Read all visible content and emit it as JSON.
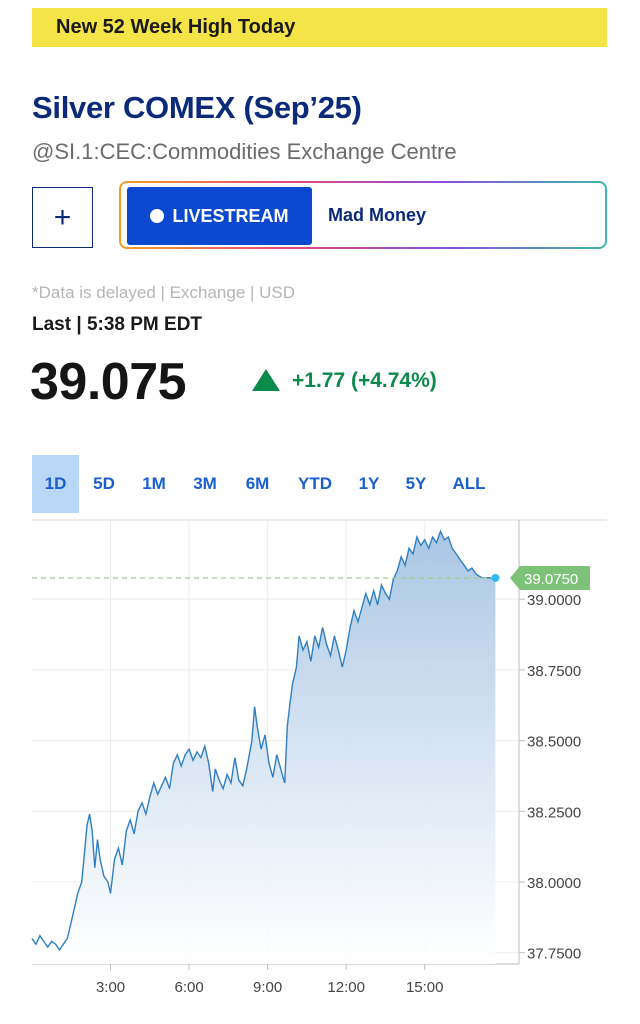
{
  "banner": "New 52 Week High Today",
  "quote": {
    "name": "Silver COMEX (Sep’25)",
    "symbol_line": "@SI.1:CEC:Commodities Exchange Centre",
    "add_button": "+",
    "livestream_label": "LIVESTREAM",
    "show_label": "Mad Money",
    "disclaimer": "*Data is delayed | Exchange | USD",
    "last_label": "Last | 5:38 PM EDT",
    "price": "39.075",
    "change": "+1.77 (+4.74%)",
    "change_color": "#0a8a4b"
  },
  "tabs": [
    {
      "label": "1D",
      "active": true
    },
    {
      "label": "5D"
    },
    {
      "label": "1M"
    },
    {
      "label": "3M"
    },
    {
      "label": "6M"
    },
    {
      "label": "YTD"
    },
    {
      "label": "1Y"
    },
    {
      "label": "5Y"
    },
    {
      "label": "ALL"
    }
  ],
  "chart_data": {
    "type": "area",
    "x_unit": "hours",
    "x_ticks": [
      3,
      6,
      9,
      12,
      15
    ],
    "x_tick_labels": [
      "3:00",
      "6:00",
      "9:00",
      "12:00",
      "15:00"
    ],
    "y_ticks": [
      37.75,
      38.0,
      38.25,
      38.5,
      38.75,
      39.0
    ],
    "y_tick_labels": [
      "37.7500",
      "38.0000",
      "38.2500",
      "38.5000",
      "38.7500",
      "39.0000"
    ],
    "xlim": [
      0,
      18.6
    ],
    "ylim": [
      37.71,
      39.28
    ],
    "last_value_label": "39.0750",
    "last_value": 39.075,
    "colors": {
      "line": "#2f7fc4",
      "fill_top": "#a9c6e4",
      "accent": "#7ec27a",
      "dot": "#2fb8ef"
    },
    "points": [
      [
        0.0,
        37.8
      ],
      [
        0.15,
        37.78
      ],
      [
        0.3,
        37.81
      ],
      [
        0.45,
        37.79
      ],
      [
        0.6,
        37.77
      ],
      [
        0.75,
        37.79
      ],
      [
        0.9,
        37.78
      ],
      [
        1.05,
        37.76
      ],
      [
        1.2,
        37.78
      ],
      [
        1.35,
        37.8
      ],
      [
        1.5,
        37.86
      ],
      [
        1.6,
        37.9
      ],
      [
        1.75,
        37.96
      ],
      [
        1.9,
        38.0
      ],
      [
        2.0,
        38.1
      ],
      [
        2.1,
        38.2
      ],
      [
        2.2,
        38.24
      ],
      [
        2.3,
        38.18
      ],
      [
        2.4,
        38.05
      ],
      [
        2.5,
        38.15
      ],
      [
        2.6,
        38.08
      ],
      [
        2.75,
        38.02
      ],
      [
        2.9,
        38.0
      ],
      [
        3.0,
        37.96
      ],
      [
        3.15,
        38.08
      ],
      [
        3.3,
        38.12
      ],
      [
        3.45,
        38.06
      ],
      [
        3.6,
        38.18
      ],
      [
        3.75,
        38.22
      ],
      [
        3.9,
        38.17
      ],
      [
        4.05,
        38.25
      ],
      [
        4.2,
        38.28
      ],
      [
        4.35,
        38.24
      ],
      [
        4.5,
        38.3
      ],
      [
        4.65,
        38.35
      ],
      [
        4.8,
        38.31
      ],
      [
        4.95,
        38.34
      ],
      [
        5.1,
        38.37
      ],
      [
        5.25,
        38.33
      ],
      [
        5.4,
        38.42
      ],
      [
        5.55,
        38.45
      ],
      [
        5.7,
        38.41
      ],
      [
        5.85,
        38.45
      ],
      [
        6.0,
        38.47
      ],
      [
        6.15,
        38.43
      ],
      [
        6.3,
        38.46
      ],
      [
        6.45,
        38.44
      ],
      [
        6.6,
        38.48
      ],
      [
        6.75,
        38.42
      ],
      [
        6.9,
        38.32
      ],
      [
        7.0,
        38.4
      ],
      [
        7.15,
        38.36
      ],
      [
        7.3,
        38.33
      ],
      [
        7.45,
        38.38
      ],
      [
        7.6,
        38.35
      ],
      [
        7.75,
        38.44
      ],
      [
        7.9,
        38.36
      ],
      [
        8.05,
        38.34
      ],
      [
        8.2,
        38.4
      ],
      [
        8.4,
        38.5
      ],
      [
        8.5,
        38.62
      ],
      [
        8.6,
        38.55
      ],
      [
        8.75,
        38.47
      ],
      [
        8.9,
        38.52
      ],
      [
        9.05,
        38.42
      ],
      [
        9.2,
        38.37
      ],
      [
        9.35,
        38.45
      ],
      [
        9.5,
        38.4
      ],
      [
        9.65,
        38.35
      ],
      [
        9.75,
        38.55
      ],
      [
        9.85,
        38.63
      ],
      [
        9.95,
        38.7
      ],
      [
        10.1,
        38.76
      ],
      [
        10.2,
        38.87
      ],
      [
        10.35,
        38.82
      ],
      [
        10.5,
        38.85
      ],
      [
        10.65,
        38.78
      ],
      [
        10.8,
        38.87
      ],
      [
        10.95,
        38.83
      ],
      [
        11.1,
        38.9
      ],
      [
        11.25,
        38.84
      ],
      [
        11.4,
        38.8
      ],
      [
        11.55,
        38.87
      ],
      [
        11.7,
        38.82
      ],
      [
        11.85,
        38.76
      ],
      [
        12.0,
        38.82
      ],
      [
        12.15,
        38.9
      ],
      [
        12.3,
        38.96
      ],
      [
        12.45,
        38.92
      ],
      [
        12.6,
        38.97
      ],
      [
        12.75,
        39.02
      ],
      [
        12.9,
        38.98
      ],
      [
        13.05,
        39.03
      ],
      [
        13.2,
        38.98
      ],
      [
        13.35,
        39.05
      ],
      [
        13.5,
        39.02
      ],
      [
        13.65,
        39.0
      ],
      [
        13.8,
        39.07
      ],
      [
        13.95,
        39.1
      ],
      [
        14.1,
        39.15
      ],
      [
        14.25,
        39.12
      ],
      [
        14.4,
        39.18
      ],
      [
        14.55,
        39.16
      ],
      [
        14.7,
        39.22
      ],
      [
        14.85,
        39.19
      ],
      [
        15.0,
        39.21
      ],
      [
        15.15,
        39.18
      ],
      [
        15.3,
        39.22
      ],
      [
        15.45,
        39.2
      ],
      [
        15.6,
        39.24
      ],
      [
        15.75,
        39.21
      ],
      [
        15.9,
        39.22
      ],
      [
        16.05,
        39.18
      ],
      [
        16.2,
        39.16
      ],
      [
        16.35,
        39.14
      ],
      [
        16.5,
        39.12
      ],
      [
        16.65,
        39.1
      ],
      [
        16.8,
        39.11
      ],
      [
        16.95,
        39.09
      ],
      [
        17.1,
        39.08
      ],
      [
        17.25,
        39.075
      ],
      [
        17.4,
        39.076
      ],
      [
        17.55,
        39.075
      ],
      [
        17.7,
        39.075
      ]
    ]
  }
}
